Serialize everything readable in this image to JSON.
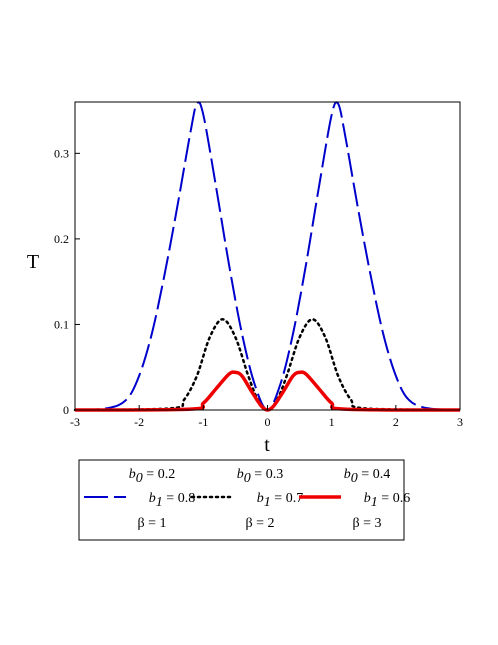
{
  "chart_data": {
    "type": "line",
    "xlabel": "t",
    "ylabel": "T",
    "xlim": [
      -3,
      3
    ],
    "ylim": [
      0,
      0.36
    ],
    "x_ticks": [
      "-3",
      "-2",
      "-1",
      "0",
      "1",
      "2",
      "3"
    ],
    "y_ticks": [
      "0",
      "0.1",
      "0.2",
      "0.3"
    ],
    "grid": false,
    "legend_position": "below",
    "series": [
      {
        "b0": "0.2",
        "b1": "0.8",
        "beta": "1",
        "color": "#0000cc",
        "style": "dashed",
        "x": [
          -3,
          -2.5,
          -2.2,
          -2.0,
          -1.8,
          -1.6,
          -1.4,
          -1.2,
          -1.1,
          -1.0,
          -0.8,
          -0.6,
          -0.4,
          -0.2,
          0,
          0.2,
          0.4,
          0.6,
          0.8,
          1.0,
          1.1,
          1.2,
          1.4,
          1.6,
          1.8,
          2.0,
          2.2,
          2.5,
          3
        ],
        "y": [
          0.0,
          0.002,
          0.012,
          0.04,
          0.09,
          0.16,
          0.24,
          0.325,
          0.358,
          0.345,
          0.26,
          0.17,
          0.09,
          0.03,
          0.0,
          0.03,
          0.09,
          0.17,
          0.26,
          0.345,
          0.358,
          0.325,
          0.24,
          0.16,
          0.09,
          0.04,
          0.012,
          0.002,
          0.0
        ]
      },
      {
        "b0": "0.3",
        "b1": "0.7",
        "beta": "2",
        "color": "#000000",
        "style": "dotted",
        "x": [
          -3,
          -1.5,
          -1.3,
          -1.1,
          -0.9,
          -0.7,
          -0.5,
          -0.3,
          -0.15,
          0,
          0.15,
          0.3,
          0.5,
          0.7,
          0.9,
          1.1,
          1.3,
          1.5,
          3
        ],
        "y": [
          0.0,
          0.002,
          0.012,
          0.04,
          0.085,
          0.106,
          0.085,
          0.04,
          0.012,
          0.0,
          0.012,
          0.04,
          0.085,
          0.106,
          0.085,
          0.04,
          0.012,
          0.002,
          0.0
        ]
      },
      {
        "b0": "0.4",
        "b1": "0.6",
        "beta": "3",
        "color": "#ee0000",
        "style": "solid",
        "x": [
          -3,
          -1.2,
          -1.0,
          -0.8,
          -0.6,
          -0.5,
          -0.4,
          -0.25,
          -0.1,
          0,
          0.1,
          0.25,
          0.4,
          0.5,
          0.6,
          0.8,
          1.0,
          1.2,
          3
        ],
        "y": [
          0.0,
          0.001,
          0.008,
          0.025,
          0.042,
          0.044,
          0.04,
          0.022,
          0.005,
          0.0,
          0.005,
          0.022,
          0.04,
          0.044,
          0.042,
          0.025,
          0.008,
          0.001,
          0.0
        ]
      }
    ]
  }
}
